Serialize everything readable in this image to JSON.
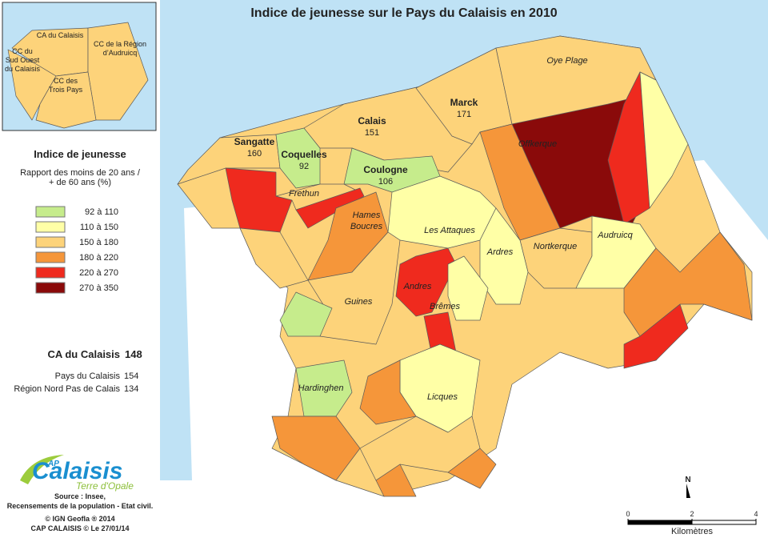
{
  "title": "Indice de jeunesse sur le Pays du Calaisis en 2010",
  "inset": {
    "labels": [
      [
        "CA du Calaisis"
      ],
      [
        "CC du",
        "Sud Ouest",
        "du Calaisis"
      ],
      [
        "CC de la Région",
        "d’Audruicq"
      ],
      [
        "CC des",
        "Trois Pays"
      ]
    ]
  },
  "legend": {
    "title": "Indice de jeunesse",
    "subtitle": [
      "Rapport des moins de 20 ans /",
      "+ de 60 ans (%)"
    ],
    "classes": [
      {
        "label": "92 à 110",
        "color": "#c6ec8c"
      },
      {
        "label": "110 à 150",
        "color": "#ffffa6"
      },
      {
        "label": "150 à 180",
        "color": "#fdd37a"
      },
      {
        "label": "180 à 220",
        "color": "#f5963a"
      },
      {
        "label": "220 à 270",
        "color": "#ef2a1e"
      },
      {
        "label": "270 à 350",
        "color": "#8a0a0a"
      }
    ]
  },
  "stats": [
    {
      "label": "CA du Calaisis",
      "value": 148
    },
    {
      "label": "Pays du Calaisis",
      "value": 154
    },
    {
      "label": "Région Nord Pas de Calais",
      "value": 134
    }
  ],
  "communes": [
    {
      "name": [
        "Sangatte"
      ],
      "value": 160
    },
    {
      "name": [
        "Calais"
      ],
      "value": 151
    },
    {
      "name": [
        "Marck"
      ],
      "value": 171
    },
    {
      "name": [
        "Coquelles"
      ],
      "value": 92
    },
    {
      "name": [
        "Coulogne"
      ],
      "value": 106
    },
    {
      "name": [
        "Oye Plage"
      ]
    },
    {
      "name": [
        "Offkerque"
      ]
    },
    {
      "name": [
        "Frethun"
      ]
    },
    {
      "name": [
        "Hames",
        "Boucres"
      ]
    },
    {
      "name": [
        "Les Attaques"
      ]
    },
    {
      "name": [
        "Ardres"
      ]
    },
    {
      "name": [
        "Nortkerque"
      ]
    },
    {
      "name": [
        "Audruicq"
      ]
    },
    {
      "name": [
        "Andres"
      ]
    },
    {
      "name": [
        "Brêmes"
      ]
    },
    {
      "name": [
        "Guines"
      ]
    },
    {
      "name": [
        "Hardinghen"
      ]
    },
    {
      "name": [
        "Licques"
      ]
    }
  ],
  "logo": {
    "prefix": "AP",
    "text": "Calaisis",
    "tagline": "Terre d'Opale"
  },
  "source": [
    "Source : Insee,",
    "Recensements de la population - Etat civil."
  ],
  "credits": [
    "© IGN Geofla ® 2014",
    "CAP CALAISIS © Le 27/01/14"
  ],
  "scale": {
    "ticks": [
      0,
      2,
      4
    ],
    "unit": "Kilomètres"
  },
  "north": "N"
}
